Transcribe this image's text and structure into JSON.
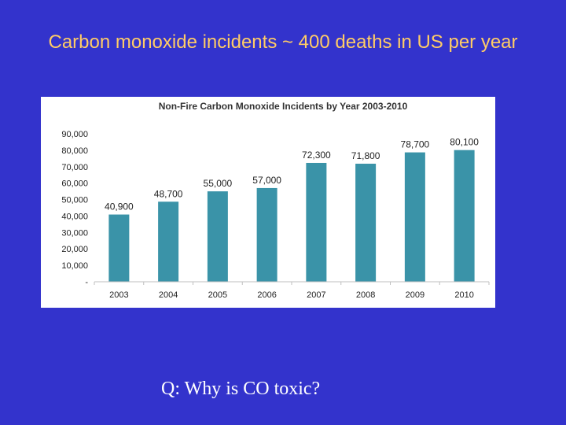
{
  "slide": {
    "title": "Carbon monoxide incidents ~ 400 deaths in US per year",
    "question": "Q: Why is CO toxic?"
  },
  "chart_data": {
    "type": "bar",
    "title": "Non-Fire Carbon Monoxide Incidents by Year 2003-2010",
    "xlabel": "",
    "ylabel": "",
    "categories": [
      "2003",
      "2004",
      "2005",
      "2006",
      "2007",
      "2008",
      "2009",
      "2010"
    ],
    "values": [
      40900,
      48700,
      55000,
      57000,
      72300,
      71800,
      78700,
      80100
    ],
    "data_labels": [
      "40,900",
      "48,700",
      "55,000",
      "57,000",
      "72,300",
      "71,800",
      "78,700",
      "80,100"
    ],
    "ylim": [
      0,
      90000
    ],
    "y_ticks": [
      0,
      10000,
      20000,
      30000,
      40000,
      50000,
      60000,
      70000,
      80000,
      90000
    ],
    "y_tick_labels": [
      "-",
      "10,000",
      "20,000",
      "30,000",
      "40,000",
      "50,000",
      "60,000",
      "70,000",
      "80,000",
      "90,000"
    ],
    "bar_color": "#3a93a8",
    "grid": false,
    "legend": "none"
  }
}
